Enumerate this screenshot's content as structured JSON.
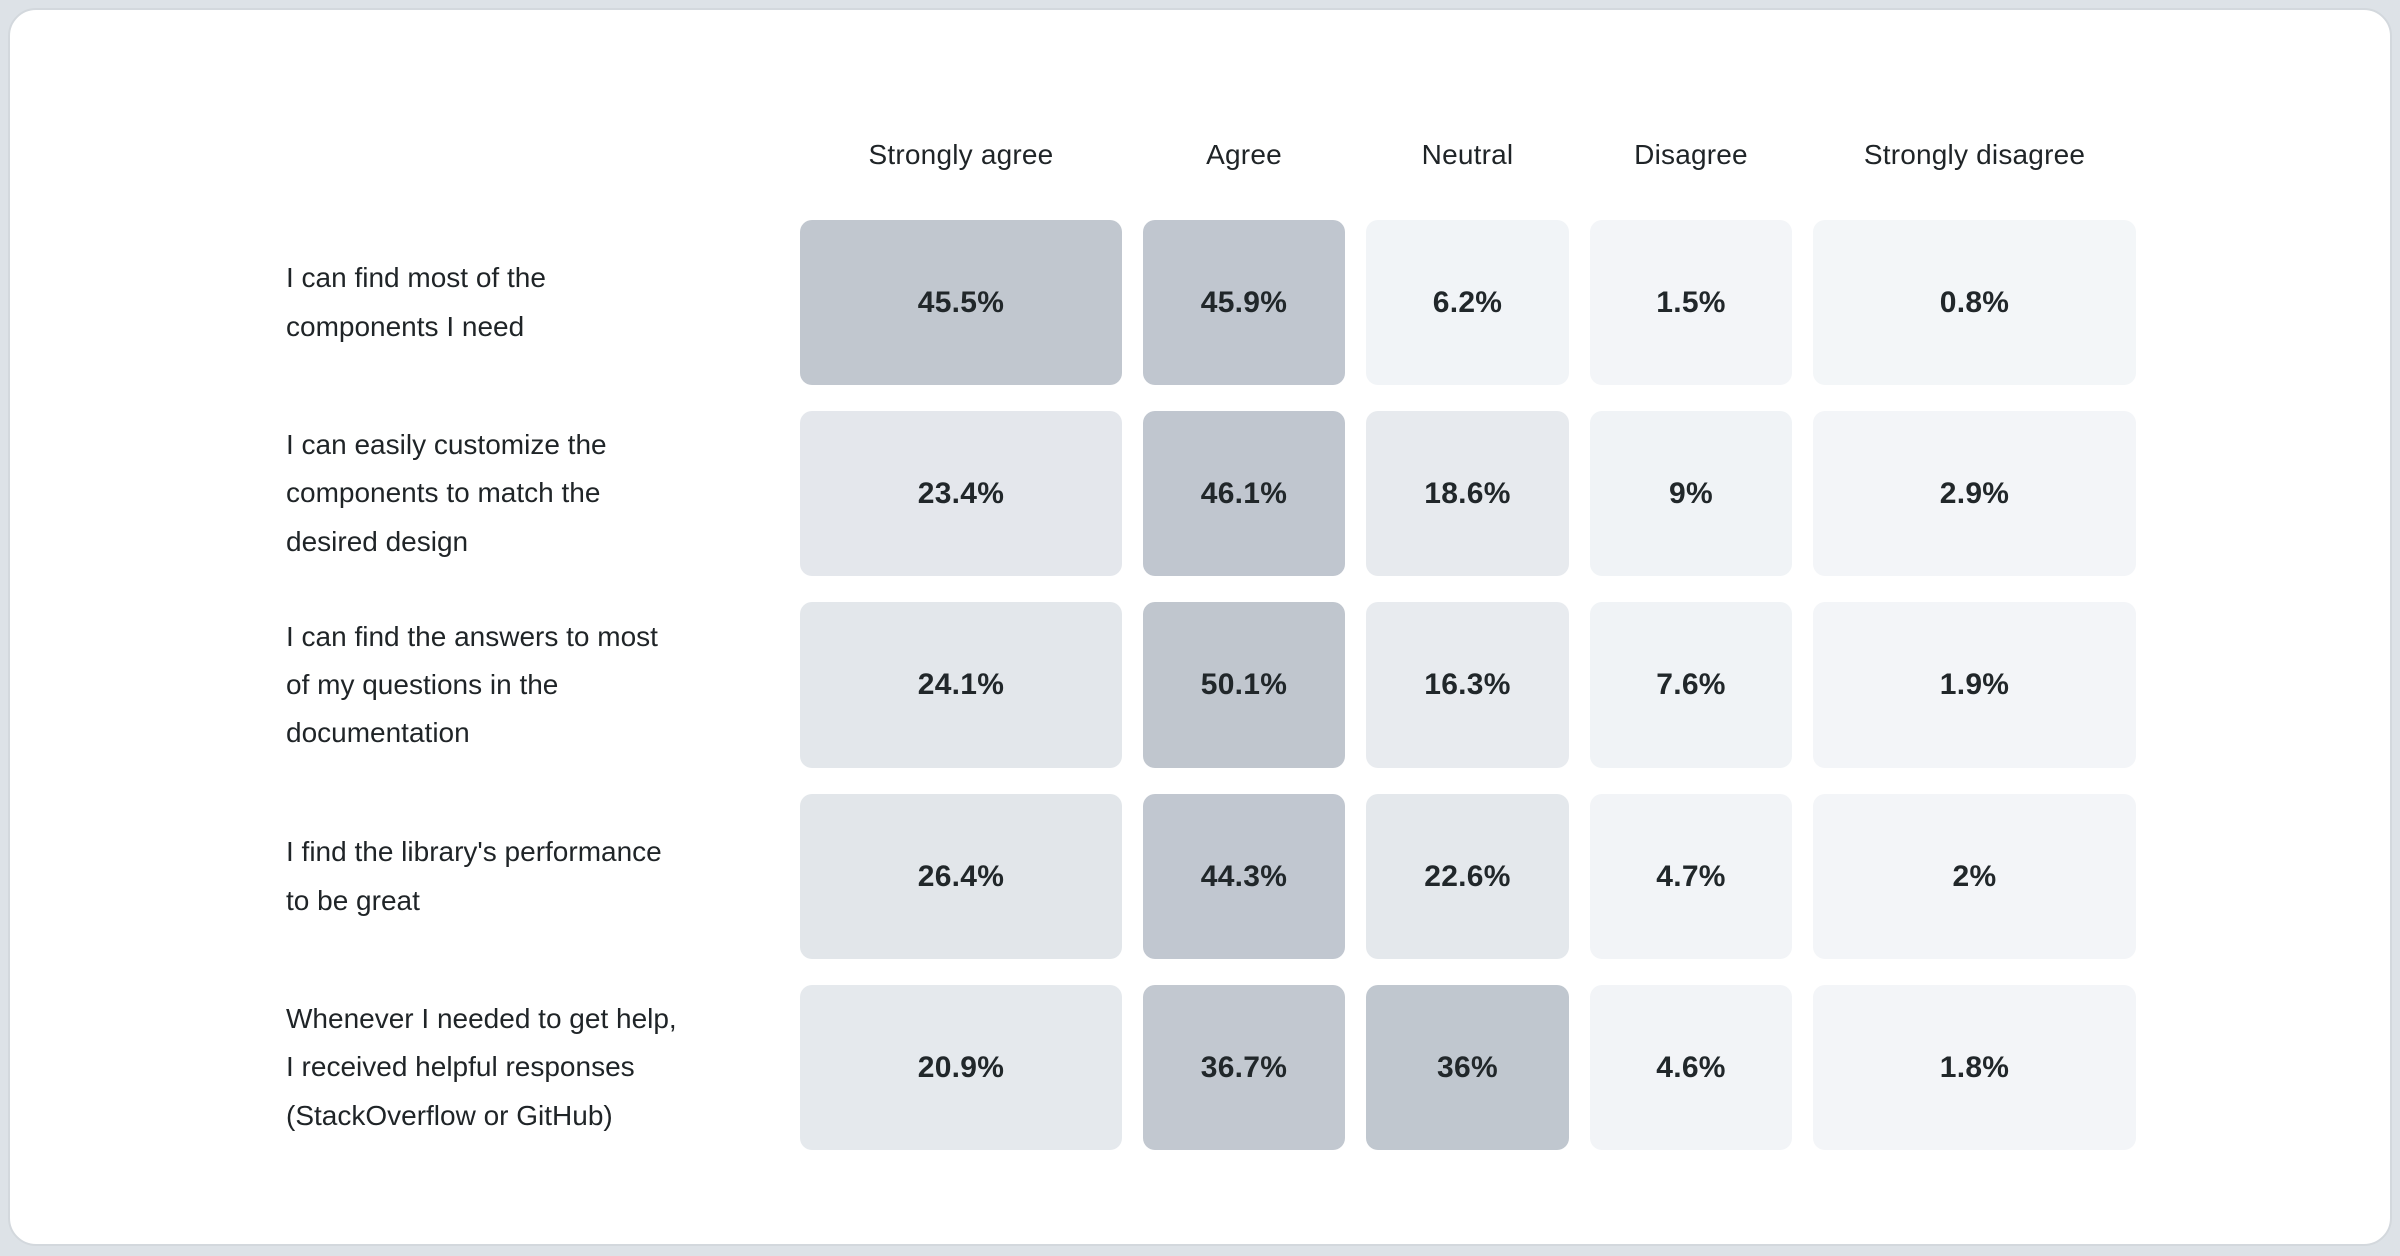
{
  "palette": {
    "page_bg": "#dde2e7",
    "card_bg": "#ffffff",
    "card_border": "#d3d8dd",
    "text": "#1f2427",
    "heat_max": "#c0c6cf",
    "heat_min": "#f3f6f8"
  },
  "chart_data": {
    "type": "heatmap",
    "unit": "%",
    "columns": [
      "Strongly agree",
      "Agree",
      "Neutral",
      "Disagree",
      "Strongly disagree"
    ],
    "rows": [
      "I can find most of the components I need",
      "I can easily customize the components to match the desired design",
      "I can find the answers to most of my questions in the documentation",
      "I find the library's performance to be great",
      "Whenever I needed to get help, I received helpful responses (StackOverflow or GitHub)"
    ],
    "values": [
      [
        45.5,
        45.9,
        6.2,
        1.5,
        0.8
      ],
      [
        23.4,
        46.1,
        18.6,
        9,
        2.9
      ],
      [
        24.1,
        50.1,
        16.3,
        7.6,
        1.9
      ],
      [
        26.4,
        44.3,
        22.6,
        4.7,
        2
      ],
      [
        20.9,
        36.7,
        36,
        4.6,
        1.8
      ]
    ],
    "legend_position": "none",
    "grid": false
  },
  "table": {
    "columns": [
      {
        "label": "Strongly agree"
      },
      {
        "label": "Agree"
      },
      {
        "label": "Neutral"
      },
      {
        "label": "Disagree"
      },
      {
        "label": "Strongly disagree"
      }
    ],
    "rows": [
      {
        "label": "I can find most of the\ncomponents I need",
        "cells": [
          {
            "text": "45.5%",
            "color": "#c1c7cf"
          },
          {
            "text": "45.9%",
            "color": "#c0c6cf"
          },
          {
            "text": "6.2%",
            "color": "#f1f4f7"
          },
          {
            "text": "1.5%",
            "color": "#f3f5f8"
          },
          {
            "text": "0.8%",
            "color": "#f3f6f8"
          }
        ]
      },
      {
        "label": "I can easily customize the\ncomponents to match the\ndesired design",
        "cells": [
          {
            "text": "23.4%",
            "color": "#e4e7ec"
          },
          {
            "text": "46.1%",
            "color": "#c0c6cf"
          },
          {
            "text": "18.6%",
            "color": "#e7eaee"
          },
          {
            "text": "9%",
            "color": "#f0f3f6"
          },
          {
            "text": "2.9%",
            "color": "#f3f5f8"
          }
        ]
      },
      {
        "label": "I can find the answers to most\nof my questions in the\ndocumentation",
        "cells": [
          {
            "text": "24.1%",
            "color": "#e3e7eb"
          },
          {
            "text": "50.1%",
            "color": "#c0c6ce"
          },
          {
            "text": "16.3%",
            "color": "#e8ebef"
          },
          {
            "text": "7.6%",
            "color": "#f0f3f6"
          },
          {
            "text": "1.9%",
            "color": "#f3f5f8"
          }
        ]
      },
      {
        "label": "I find the library's performance\nto be great",
        "cells": [
          {
            "text": "26.4%",
            "color": "#e2e6ea"
          },
          {
            "text": "44.3%",
            "color": "#c1c7d0"
          },
          {
            "text": "22.6%",
            "color": "#e4e8ec"
          },
          {
            "text": "4.7%",
            "color": "#f2f4f7"
          },
          {
            "text": "2%",
            "color": "#f3f5f8"
          }
        ]
      },
      {
        "label": "Whenever I needed to get help,\nI received helpful responses\n(StackOverflow or GitHub)",
        "cells": [
          {
            "text": "20.9%",
            "color": "#e5e9ed"
          },
          {
            "text": "36.7%",
            "color": "#c2c8d0"
          },
          {
            "text": "36%",
            "color": "#c0c7cf"
          },
          {
            "text": "4.6%",
            "color": "#f2f4f7"
          },
          {
            "text": "1.8%",
            "color": "#f3f5f8"
          }
        ]
      }
    ]
  }
}
